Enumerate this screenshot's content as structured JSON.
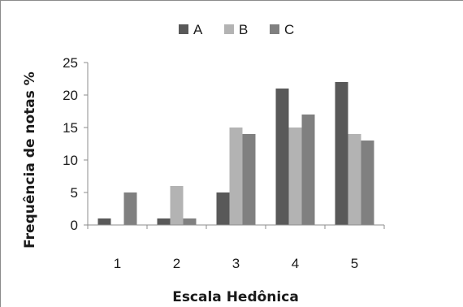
{
  "chart_data": {
    "type": "bar",
    "categories": [
      "1",
      "2",
      "3",
      "4",
      "5"
    ],
    "series": [
      {
        "name": "A",
        "values": [
          1,
          1,
          5,
          21,
          22
        ],
        "color": "#595959"
      },
      {
        "name": "B",
        "values": [
          0,
          6,
          15,
          15,
          14
        ],
        "color": "#b3b3b3"
      },
      {
        "name": "C",
        "values": [
          5,
          1,
          14,
          17,
          13
        ],
        "color": "#808080"
      }
    ],
    "ylim": [
      0,
      25
    ],
    "yticks": [
      "0",
      "5",
      "10",
      "15",
      "20",
      "25"
    ],
    "xlabel": "Escala Hedônica",
    "ylabel": "Frequência de notas %",
    "grid": false,
    "legend_position": "top"
  }
}
